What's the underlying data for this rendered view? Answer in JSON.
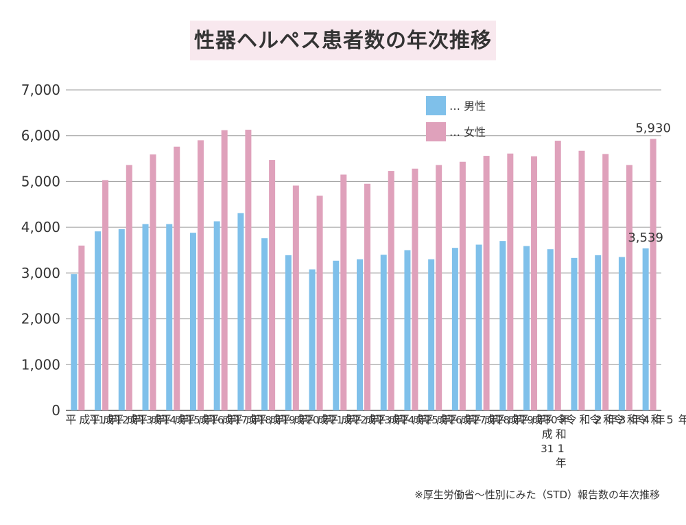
{
  "chart_data": {
    "type": "bar",
    "title": "性器ヘルペス患者数の年次推移",
    "source": "※厚生労働省〜性別にみた（STD）報告数の年次推移",
    "xlabel": "",
    "ylabel": "",
    "ylim": [
      0,
      7000
    ],
    "yticks": [
      "0",
      "1,000",
      "2,000",
      "3,000",
      "4,000",
      "5,000",
      "6,000",
      "7,000"
    ],
    "grid": true,
    "legend_position": "top-right",
    "categories": [
      "平成11年",
      "平成12年",
      "平成13年",
      "平成14年",
      "平成15年",
      "平成16年",
      "平成17年",
      "平成18年",
      "平成19年",
      "平成20年",
      "平成21年",
      "平成22年",
      "平成23年",
      "平成24年",
      "平成25年",
      "平成26年",
      "平成27年",
      "平成28年",
      "平成29年",
      "平成30年",
      "平成31令和1年",
      "令和2年",
      "令和3年",
      "令和4年",
      "令和5年"
    ],
    "category_label_columns": [
      [
        [
          "平"
        ],
        [
          "成"
        ],
        [
          "11"
        ],
        [
          "年"
        ]
      ],
      [
        [
          "平"
        ],
        [
          "成"
        ],
        [
          "12"
        ],
        [
          "年"
        ]
      ],
      [
        [
          "平"
        ],
        [
          "成"
        ],
        [
          "13"
        ],
        [
          "年"
        ]
      ],
      [
        [
          "平"
        ],
        [
          "成"
        ],
        [
          "14"
        ],
        [
          "年"
        ]
      ],
      [
        [
          "平"
        ],
        [
          "成"
        ],
        [
          "15"
        ],
        [
          "年"
        ]
      ],
      [
        [
          "平"
        ],
        [
          "成"
        ],
        [
          "16"
        ],
        [
          "年"
        ]
      ],
      [
        [
          "平"
        ],
        [
          "成"
        ],
        [
          "17"
        ],
        [
          "年"
        ]
      ],
      [
        [
          "平"
        ],
        [
          "成"
        ],
        [
          "18"
        ],
        [
          "年"
        ]
      ],
      [
        [
          "平"
        ],
        [
          "成"
        ],
        [
          "19"
        ],
        [
          "年"
        ]
      ],
      [
        [
          "平"
        ],
        [
          "成"
        ],
        [
          "20"
        ],
        [
          "年"
        ]
      ],
      [
        [
          "平"
        ],
        [
          "成"
        ],
        [
          "21"
        ],
        [
          "年"
        ]
      ],
      [
        [
          "平"
        ],
        [
          "成"
        ],
        [
          "22"
        ],
        [
          "年"
        ]
      ],
      [
        [
          "平"
        ],
        [
          "成"
        ],
        [
          "23"
        ],
        [
          "年"
        ]
      ],
      [
        [
          "平"
        ],
        [
          "成"
        ],
        [
          "24"
        ],
        [
          "年"
        ]
      ],
      [
        [
          "平"
        ],
        [
          "成"
        ],
        [
          "25"
        ],
        [
          "年"
        ]
      ],
      [
        [
          "平"
        ],
        [
          "成"
        ],
        [
          "26"
        ],
        [
          "年"
        ]
      ],
      [
        [
          "平"
        ],
        [
          "成"
        ],
        [
          "27"
        ],
        [
          "年"
        ]
      ],
      [
        [
          "平"
        ],
        [
          "成"
        ],
        [
          "28"
        ],
        [
          "年"
        ]
      ],
      [
        [
          "平"
        ],
        [
          "成"
        ],
        [
          "29"
        ],
        [
          "年"
        ]
      ],
      [
        [
          "平"
        ],
        [
          "成"
        ],
        [
          "30"
        ],
        [
          "年"
        ]
      ],
      [
        [
          "平",
          "成",
          "31"
        ],
        [
          "令",
          "和",
          "1",
          "年"
        ]
      ],
      [
        [
          "令"
        ],
        [
          "和"
        ],
        [
          "2"
        ],
        [
          "年"
        ]
      ],
      [
        [
          "令"
        ],
        [
          "和"
        ],
        [
          "3"
        ],
        [
          "年"
        ]
      ],
      [
        [
          "令"
        ],
        [
          "和"
        ],
        [
          "4"
        ],
        [
          "年"
        ]
      ],
      [
        [
          "令"
        ],
        [
          "和"
        ],
        [
          "5"
        ],
        [
          "年"
        ]
      ]
    ],
    "series": [
      {
        "name": "男性",
        "legend_label": "… 男性",
        "color": "#7fc0ea",
        "values": [
          2980,
          3910,
          3960,
          4070,
          4070,
          3880,
          4130,
          4310,
          3760,
          3390,
          3080,
          3270,
          3300,
          3400,
          3500,
          3300,
          3550,
          3620,
          3700,
          3590,
          3520,
          3330,
          3390,
          3350,
          3539
        ]
      },
      {
        "name": "女性",
        "legend_label": "… 女性",
        "color": "#dfa1bb",
        "values": [
          3600,
          5030,
          5360,
          5590,
          5760,
          5900,
          6120,
          6130,
          5470,
          4910,
          4690,
          5150,
          4950,
          5230,
          5280,
          5360,
          5430,
          5560,
          5610,
          5550,
          5890,
          5670,
          5600,
          5360,
          5930
        ]
      }
    ],
    "annotations": [
      {
        "series": 1,
        "index": 24,
        "text": "5,930"
      },
      {
        "series": 0,
        "index": 24,
        "text": "3,539"
      }
    ]
  }
}
